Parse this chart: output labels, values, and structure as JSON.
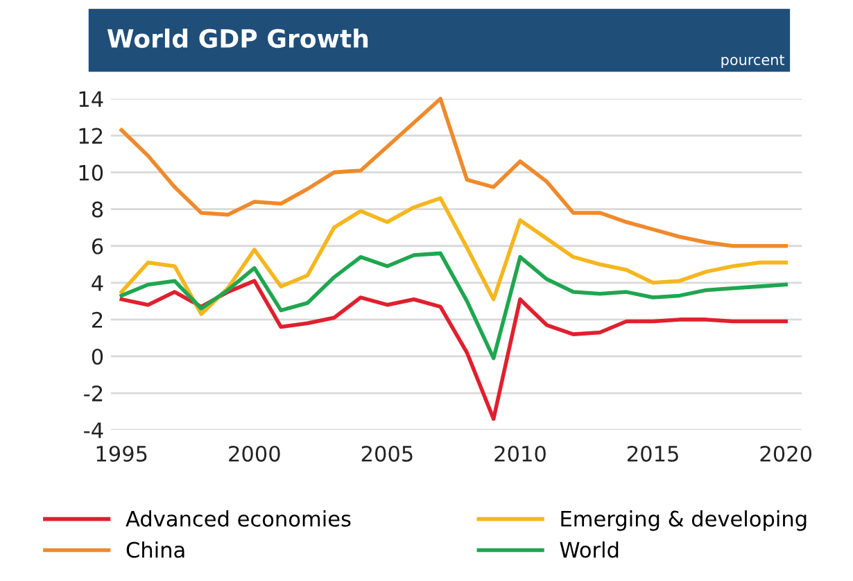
{
  "chart_data": {
    "type": "line",
    "title": "World GDP Growth",
    "subtitle": "pourcent",
    "x": [
      1995,
      1996,
      1997,
      1998,
      1999,
      2000,
      2001,
      2002,
      2003,
      2004,
      2005,
      2006,
      2007,
      2008,
      2009,
      2010,
      2011,
      2012,
      2013,
      2014,
      2015,
      2016,
      2017,
      2018,
      2019,
      2020
    ],
    "series": [
      {
        "name": "Advanced economies",
        "color": "#e0202e",
        "values": [
          3.1,
          2.8,
          3.5,
          2.7,
          3.5,
          4.1,
          1.6,
          1.8,
          2.1,
          3.2,
          2.8,
          3.1,
          2.7,
          0.2,
          -3.4,
          3.1,
          1.7,
          1.2,
          1.3,
          1.9,
          1.9,
          2.0,
          2.0,
          1.9,
          1.9,
          1.9
        ]
      },
      {
        "name": "Emerging & developing",
        "color": "#f5b61e",
        "values": [
          3.5,
          5.1,
          4.9,
          2.3,
          3.7,
          5.8,
          3.8,
          4.4,
          7.0,
          7.9,
          7.3,
          8.1,
          8.6,
          5.9,
          3.1,
          7.4,
          6.4,
          5.4,
          5.0,
          4.7,
          4.0,
          4.1,
          4.6,
          4.9,
          5.1,
          5.1
        ]
      },
      {
        "name": "China",
        "color": "#ef8a2c",
        "values": [
          12.3,
          10.9,
          9.2,
          7.8,
          7.7,
          8.4,
          8.3,
          9.1,
          10.0,
          10.1,
          11.4,
          12.7,
          14.0,
          9.6,
          9.2,
          10.6,
          9.5,
          7.8,
          7.8,
          7.3,
          6.9,
          6.5,
          6.2,
          6.0,
          6.0,
          6.0
        ]
      },
      {
        "name": "World",
        "color": "#1fa650",
        "values": [
          3.3,
          3.9,
          4.1,
          2.6,
          3.6,
          4.8,
          2.5,
          2.9,
          4.3,
          5.4,
          4.9,
          5.5,
          5.6,
          3.0,
          -0.1,
          5.4,
          4.2,
          3.5,
          3.4,
          3.5,
          3.2,
          3.3,
          3.6,
          3.7,
          3.8,
          3.9
        ]
      }
    ],
    "xlim": [
      1994.6,
      2020.6
    ],
    "xticks": [
      1995,
      2000,
      2005,
      2010,
      2015,
      2020
    ],
    "ylim": [
      -4,
      14
    ],
    "yticks": [
      -4,
      -2,
      0,
      2,
      4,
      6,
      8,
      10,
      12,
      14
    ],
    "grid": "y",
    "legend": "bottom",
    "marker": "none",
    "line_style": "solid"
  }
}
